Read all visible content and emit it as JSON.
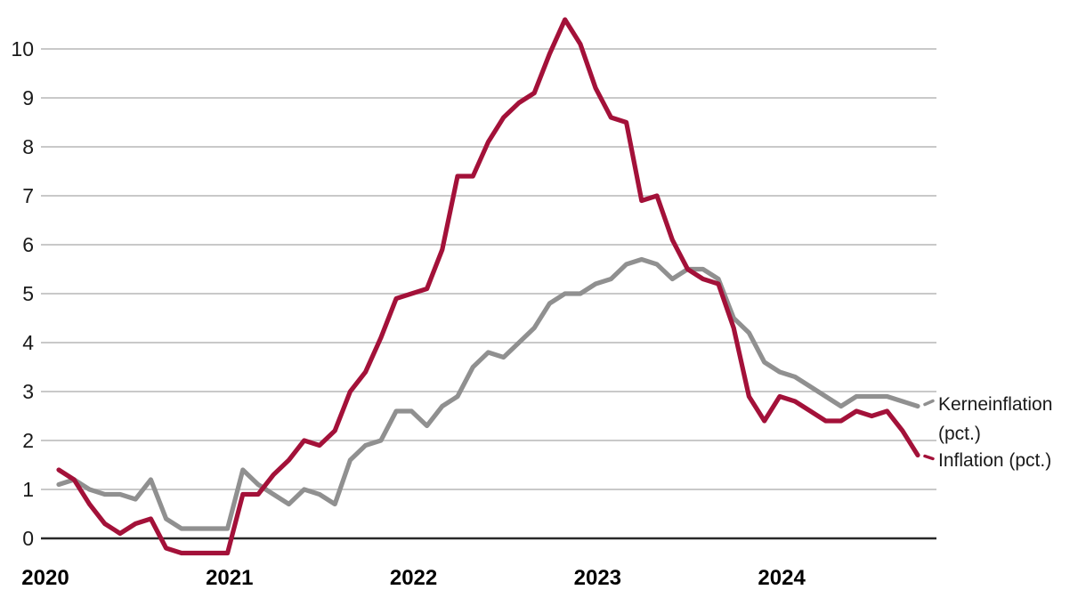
{
  "chart_data": {
    "type": "line",
    "title": "",
    "frequency": "monthly",
    "x_start": "2020-01",
    "x_end": "2024-09",
    "x_tick_labels": [
      "2020",
      "2021",
      "2022",
      "2023",
      "2024"
    ],
    "y_ticks": [
      0,
      1,
      2,
      3,
      4,
      5,
      6,
      7,
      8,
      9,
      10
    ],
    "ylim": [
      -0.5,
      10.8
    ],
    "grid": "horizontal",
    "legend_position": "right-end-of-lines",
    "colors": {
      "grid": "#C9C9C9",
      "axis": "#282828",
      "y_tick_text": "#1a1a1a",
      "x_tick_text": "#000000",
      "label_text": "#1a1a1a"
    },
    "series": [
      {
        "id": "kerneinflation",
        "name": "Kerneinflation (pct.)",
        "label_lines": [
          "Kerneinflation",
          "(pct.)"
        ],
        "color": "#909090",
        "values": [
          1.1,
          1.2,
          1.0,
          0.9,
          0.9,
          0.8,
          1.2,
          0.4,
          0.2,
          0.2,
          0.2,
          0.2,
          1.4,
          1.1,
          0.9,
          0.7,
          1.0,
          0.9,
          0.7,
          1.6,
          1.9,
          2.0,
          2.6,
          2.6,
          2.3,
          2.7,
          2.9,
          3.5,
          3.8,
          3.7,
          4.0,
          4.3,
          4.8,
          5.0,
          5.0,
          5.2,
          5.3,
          5.6,
          5.7,
          5.6,
          5.3,
          5.5,
          5.5,
          5.3,
          4.5,
          4.2,
          3.6,
          3.4,
          3.3,
          3.1,
          2.9,
          2.7,
          2.9,
          2.9,
          2.9,
          2.8,
          2.7
        ]
      },
      {
        "id": "inflation",
        "name": "Inflation (pct.)",
        "label_lines": [
          "Inflation (pct.)"
        ],
        "color": "#A31139",
        "values": [
          1.4,
          1.2,
          0.7,
          0.3,
          0.1,
          0.3,
          0.4,
          -0.2,
          -0.3,
          -0.3,
          -0.3,
          -0.3,
          0.9,
          0.9,
          1.3,
          1.6,
          2.0,
          1.9,
          2.2,
          3.0,
          3.4,
          4.1,
          4.9,
          5.0,
          5.1,
          5.9,
          7.4,
          7.4,
          8.1,
          8.6,
          8.9,
          9.1,
          9.9,
          10.6,
          10.1,
          9.2,
          8.6,
          8.5,
          6.9,
          7.0,
          6.1,
          5.5,
          5.3,
          5.2,
          4.3,
          2.9,
          2.4,
          2.9,
          2.8,
          2.6,
          2.4,
          2.4,
          2.6,
          2.5,
          2.6,
          2.2,
          1.7
        ]
      }
    ]
  }
}
